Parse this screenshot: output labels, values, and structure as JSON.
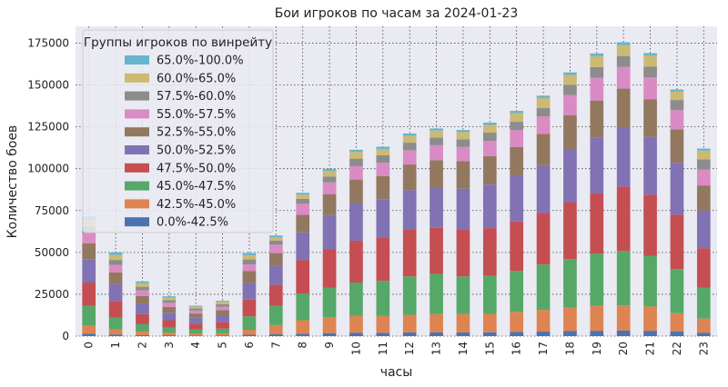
{
  "chart_data": {
    "type": "bar",
    "stacked": true,
    "title": "Бои игроков по часам за 2024-01-23",
    "xlabel": "часы",
    "ylabel": "Количество боев",
    "ylim": [
      0,
      185000
    ],
    "yticks": [
      0,
      25000,
      50000,
      75000,
      100000,
      125000,
      150000,
      175000
    ],
    "grid": true,
    "legend_position": "top-left",
    "legend_title": "Группы игроков по винрейту",
    "categories": [
      "0",
      "1",
      "2",
      "3",
      "4",
      "5",
      "6",
      "7",
      "8",
      "9",
      "10",
      "11",
      "12",
      "13",
      "14",
      "15",
      "16",
      "17",
      "18",
      "19",
      "20",
      "21",
      "22",
      "23"
    ],
    "series": [
      {
        "name": "0.0%-42.5%",
        "color": "#4c72b0",
        "values": [
          1500,
          1000,
          600,
          500,
          400,
          400,
          800,
          1100,
          1500,
          1800,
          2000,
          2000,
          2200,
          2200,
          2200,
          2300,
          2500,
          2700,
          3000,
          3200,
          3300,
          3200,
          2700,
          2000
        ]
      },
      {
        "name": "42.5%-45.0%",
        "color": "#dd8452",
        "values": [
          5000,
          3000,
          2000,
          1500,
          1200,
          1300,
          3000,
          5500,
          8000,
          9500,
          10000,
          10000,
          10500,
          11000,
          11000,
          11000,
          12000,
          13000,
          14000,
          15000,
          15000,
          14500,
          11000,
          8500
        ]
      },
      {
        "name": "45.0%-47.5%",
        "color": "#55a868",
        "values": [
          11500,
          7000,
          4500,
          3000,
          2400,
          2800,
          8000,
          11500,
          16000,
          17500,
          20000,
          21000,
          23000,
          24000,
          22500,
          22700,
          24500,
          27000,
          29000,
          31000,
          32500,
          30300,
          26300,
          18500
        ]
      },
      {
        "name": "47.5%-50.0%",
        "color": "#c44e52",
        "values": [
          14000,
          10000,
          6000,
          4500,
          3500,
          4000,
          10000,
          12500,
          20000,
          23000,
          25000,
          26000,
          28000,
          27500,
          27800,
          28500,
          29500,
          31000,
          34000,
          36000,
          38500,
          36500,
          32500,
          23500
        ]
      },
      {
        "name": "50.0%-52.5%",
        "color": "#8172b3",
        "values": [
          14000,
          10000,
          6400,
          4500,
          3500,
          4000,
          10000,
          11500,
          16500,
          20500,
          22500,
          22500,
          23500,
          24000,
          24500,
          26000,
          27500,
          28500,
          31500,
          33500,
          35500,
          34500,
          31000,
          22500
        ]
      },
      {
        "name": "52.5%-55.0%",
        "color": "#937860",
        "values": [
          9500,
          7000,
          4500,
          3500,
          2500,
          3000,
          7000,
          7500,
          10500,
          12500,
          14000,
          14000,
          15300,
          16300,
          16500,
          17000,
          17000,
          18500,
          20500,
          22000,
          23000,
          22500,
          20000,
          15000
        ]
      },
      {
        "name": "55.0%-57.5%",
        "color": "#da8bc3",
        "values": [
          6000,
          4500,
          3300,
          2400,
          1800,
          2000,
          4000,
          5000,
          6500,
          7000,
          8000,
          8000,
          8500,
          9000,
          8500,
          9000,
          10000,
          10500,
          12000,
          13500,
          13000,
          13000,
          11500,
          9500
        ]
      },
      {
        "name": "57.5%-60.0%",
        "color": "#8c8c8c",
        "values": [
          4000,
          3000,
          2200,
          1600,
          1200,
          1500,
          3000,
          2500,
          3000,
          3500,
          4500,
          4500,
          4500,
          4500,
          4500,
          5000,
          5000,
          5000,
          6000,
          6500,
          6500,
          6500,
          6000,
          6000
        ]
      },
      {
        "name": "60.0%-65.0%",
        "color": "#ccb974",
        "values": [
          4000,
          3000,
          2200,
          1600,
          1200,
          1500,
          2500,
          2000,
          2500,
          3300,
          4000,
          3800,
          4200,
          4300,
          4400,
          4700,
          5200,
          6000,
          6000,
          6500,
          6500,
          6500,
          5000,
          5300
        ]
      },
      {
        "name": "65.0%-100.0%",
        "color": "#64b5cd",
        "values": [
          2000,
          1500,
          1000,
          700,
          500,
          600,
          1200,
          1000,
          1100,
          1200,
          1300,
          1300,
          1300,
          1200,
          1200,
          1300,
          1300,
          1400,
          1500,
          1600,
          1700,
          1500,
          1300,
          1200
        ]
      }
    ]
  }
}
